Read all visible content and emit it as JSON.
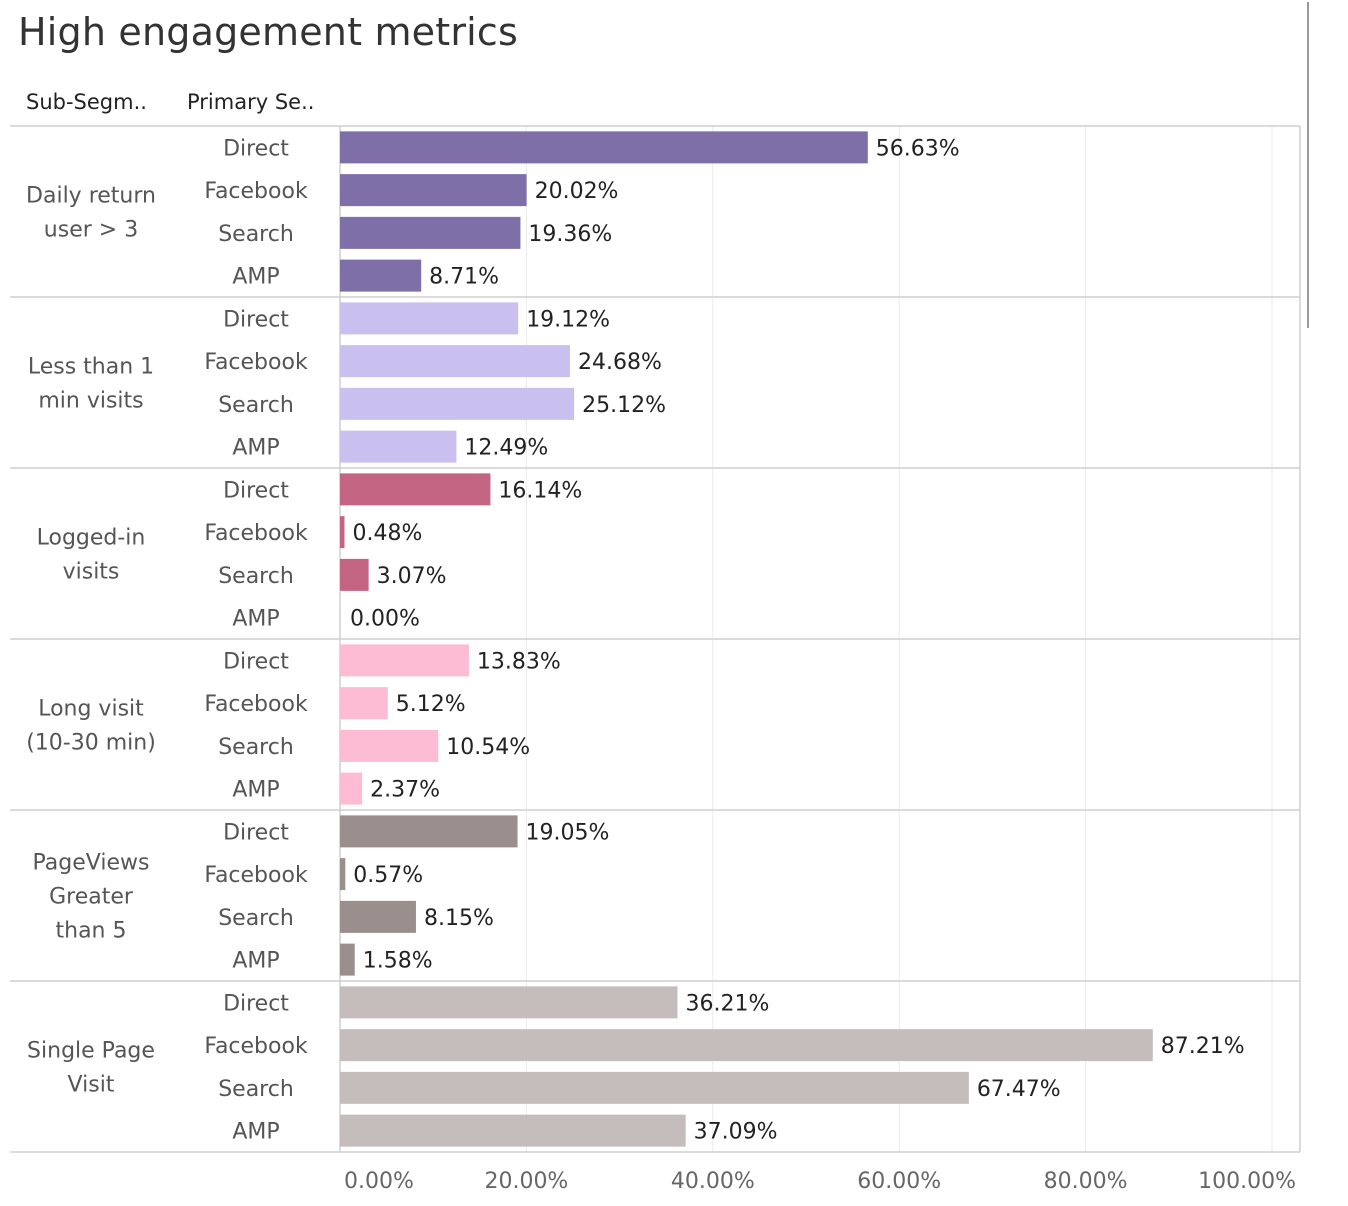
{
  "title": "High engagement metrics",
  "headers": {
    "sub_segment": "Sub-Segm..",
    "primary_segment": "Primary Se.."
  },
  "colors": {
    "daily": "#7e6fa8",
    "less": "#c9c0f0",
    "logged": "#c26482",
    "long": "#fdbcd3",
    "pageviews": "#9b8f8d",
    "single": "#c4bdbb"
  },
  "chart_data": {
    "type": "bar",
    "orientation": "horizontal",
    "title": "High engagement metrics",
    "xlim": [
      0,
      100
    ],
    "x_ticks": [
      "0.00%",
      "20.00%",
      "40.00%",
      "60.00%",
      "80.00%",
      "100.00%"
    ],
    "value_format": "percent",
    "grid": true,
    "groups": [
      {
        "label_lines": [
          "Daily return",
          "user > 3"
        ],
        "color_key": "daily",
        "bars": [
          {
            "label": "Direct",
            "value": 56.63,
            "text": "56.63%"
          },
          {
            "label": "Facebook",
            "value": 20.02,
            "text": "20.02%"
          },
          {
            "label": "Search",
            "value": 19.36,
            "text": "19.36%"
          },
          {
            "label": "AMP",
            "value": 8.71,
            "text": "8.71%"
          }
        ]
      },
      {
        "label_lines": [
          "Less than 1",
          "min visits"
        ],
        "color_key": "less",
        "bars": [
          {
            "label": "Direct",
            "value": 19.12,
            "text": "19.12%"
          },
          {
            "label": "Facebook",
            "value": 24.68,
            "text": "24.68%"
          },
          {
            "label": "Search",
            "value": 25.12,
            "text": "25.12%"
          },
          {
            "label": "AMP",
            "value": 12.49,
            "text": "12.49%"
          }
        ]
      },
      {
        "label_lines": [
          "Logged-in",
          "visits"
        ],
        "color_key": "logged",
        "bars": [
          {
            "label": "Direct",
            "value": 16.14,
            "text": "16.14%"
          },
          {
            "label": "Facebook",
            "value": 0.48,
            "text": "0.48%"
          },
          {
            "label": "Search",
            "value": 3.07,
            "text": "3.07%"
          },
          {
            "label": "AMP",
            "value": 0.0,
            "text": "0.00%"
          }
        ]
      },
      {
        "label_lines": [
          "Long visit",
          "(10-30 min)"
        ],
        "color_key": "long",
        "bars": [
          {
            "label": "Direct",
            "value": 13.83,
            "text": "13.83%"
          },
          {
            "label": "Facebook",
            "value": 5.12,
            "text": "5.12%"
          },
          {
            "label": "Search",
            "value": 10.54,
            "text": "10.54%"
          },
          {
            "label": "AMP",
            "value": 2.37,
            "text": "2.37%"
          }
        ]
      },
      {
        "label_lines": [
          "PageViews",
          "Greater",
          "than 5"
        ],
        "color_key": "pageviews",
        "bars": [
          {
            "label": "Direct",
            "value": 19.05,
            "text": "19.05%"
          },
          {
            "label": "Facebook",
            "value": 0.57,
            "text": "0.57%"
          },
          {
            "label": "Search",
            "value": 8.15,
            "text": "8.15%"
          },
          {
            "label": "AMP",
            "value": 1.58,
            "text": "1.58%"
          }
        ]
      },
      {
        "label_lines": [
          "Single Page",
          "Visit"
        ],
        "color_key": "single",
        "bars": [
          {
            "label": "Direct",
            "value": 36.21,
            "text": "36.21%"
          },
          {
            "label": "Facebook",
            "value": 87.21,
            "text": "87.21%"
          },
          {
            "label": "Search",
            "value": 67.47,
            "text": "67.47%"
          },
          {
            "label": "AMP",
            "value": 37.09,
            "text": "37.09%"
          }
        ]
      }
    ]
  }
}
